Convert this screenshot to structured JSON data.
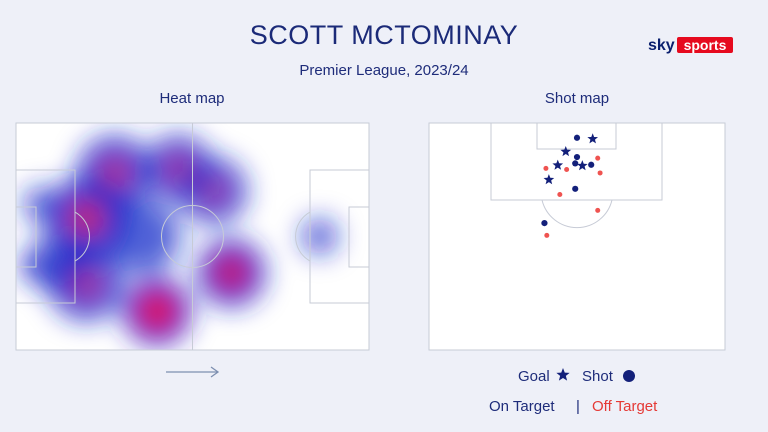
{
  "header": {
    "title": "SCOTT MCTOMINAY",
    "subtitle": "Premier League, 2023/24"
  },
  "brand": {
    "sky": "sky",
    "sports": "sports",
    "sky_color": "#0a1f6e",
    "sports_color": "#e60a1e"
  },
  "colors": {
    "background": "#eef0f8",
    "title": "#1b2a78",
    "text": "#1e2c7a",
    "pitch_line": "#c7cbd6",
    "heat_low": "#1626c8",
    "heat_high": "#ff0b1a",
    "on_target": "#13207a",
    "off_target": "#ef5350"
  },
  "chart_data": [
    {
      "type": "heatmap",
      "title": "Heat map",
      "attacking_direction": "right",
      "hotspots": [
        {
          "x": 0.4,
          "y": 0.83,
          "intensity": 1.0,
          "spread": 0.09
        },
        {
          "x": 0.2,
          "y": 0.71,
          "intensity": 0.55,
          "spread": 0.1
        },
        {
          "x": 0.2,
          "y": 0.42,
          "intensity": 0.7,
          "spread": 0.11
        },
        {
          "x": 0.28,
          "y": 0.22,
          "intensity": 0.6,
          "spread": 0.1
        },
        {
          "x": 0.46,
          "y": 0.2,
          "intensity": 0.55,
          "spread": 0.09
        },
        {
          "x": 0.61,
          "y": 0.66,
          "intensity": 0.85,
          "spread": 0.09
        },
        {
          "x": 0.56,
          "y": 0.3,
          "intensity": 0.5,
          "spread": 0.09
        },
        {
          "x": 0.12,
          "y": 0.62,
          "intensity": 0.35,
          "spread": 0.08
        },
        {
          "x": 0.36,
          "y": 0.5,
          "intensity": 0.4,
          "spread": 0.1
        },
        {
          "x": 0.07,
          "y": 0.36,
          "intensity": 0.2,
          "spread": 0.05
        },
        {
          "x": 0.05,
          "y": 0.63,
          "intensity": 0.2,
          "spread": 0.04
        },
        {
          "x": 0.86,
          "y": 0.5,
          "intensity": 0.28,
          "spread": 0.05
        }
      ]
    },
    {
      "type": "scatter",
      "title": "Shot map",
      "shots": [
        {
          "x": 0.5,
          "y": 0.065,
          "outcome": "shot",
          "on_target": true
        },
        {
          "x": 0.553,
          "y": 0.07,
          "outcome": "goal",
          "on_target": true
        },
        {
          "x": 0.462,
          "y": 0.126,
          "outcome": "goal",
          "on_target": true
        },
        {
          "x": 0.5,
          "y": 0.15,
          "outcome": "shot",
          "on_target": true
        },
        {
          "x": 0.57,
          "y": 0.155,
          "outcome": "shot",
          "on_target": false
        },
        {
          "x": 0.435,
          "y": 0.186,
          "outcome": "goal",
          "on_target": true
        },
        {
          "x": 0.494,
          "y": 0.178,
          "outcome": "shot",
          "on_target": true
        },
        {
          "x": 0.518,
          "y": 0.188,
          "outcome": "goal",
          "on_target": true
        },
        {
          "x": 0.548,
          "y": 0.184,
          "outcome": "shot",
          "on_target": true
        },
        {
          "x": 0.395,
          "y": 0.2,
          "outcome": "shot",
          "on_target": false
        },
        {
          "x": 0.465,
          "y": 0.205,
          "outcome": "shot",
          "on_target": false
        },
        {
          "x": 0.578,
          "y": 0.22,
          "outcome": "shot",
          "on_target": false
        },
        {
          "x": 0.405,
          "y": 0.25,
          "outcome": "goal",
          "on_target": true
        },
        {
          "x": 0.494,
          "y": 0.29,
          "outcome": "shot",
          "on_target": true
        },
        {
          "x": 0.442,
          "y": 0.315,
          "outcome": "shot",
          "on_target": false
        },
        {
          "x": 0.57,
          "y": 0.385,
          "outcome": "shot",
          "on_target": false
        },
        {
          "x": 0.39,
          "y": 0.441,
          "outcome": "shot",
          "on_target": true
        },
        {
          "x": 0.398,
          "y": 0.495,
          "outcome": "shot",
          "on_target": false
        }
      ]
    }
  ],
  "legend": {
    "goal": "Goal",
    "shot": "Shot",
    "on_target": "On Target",
    "separator": "|",
    "off_target": "Off Target"
  }
}
